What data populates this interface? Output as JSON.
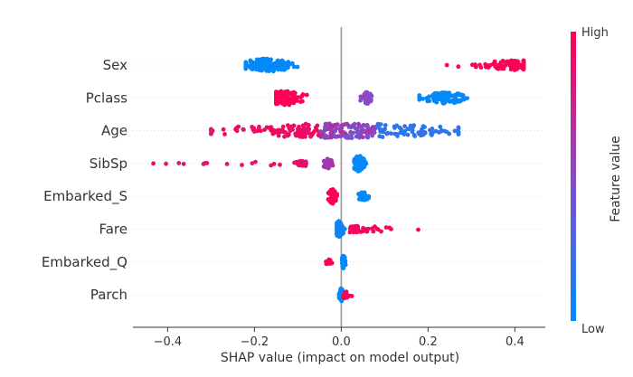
{
  "chart_data": {
    "type": "scatter",
    "subtype": "beeswarm",
    "xlabel": "SHAP value (impact on model output)",
    "ylabel": "",
    "xlim": [
      -0.48,
      0.47
    ],
    "xticks": [
      -0.4,
      -0.2,
      0.0,
      0.2,
      0.4
    ],
    "xtick_labels": [
      "−0.4",
      "−0.2",
      "0.0",
      "0.2",
      "0.4"
    ],
    "grid": false,
    "colorbar": {
      "label": "Feature value",
      "high_label": "High",
      "low_label": "Low",
      "high_color": "#ff0052",
      "low_color": "#008bfb"
    },
    "features": [
      {
        "name": "Sex",
        "clusters": [
          {
            "x_range": [
              -0.22,
              -0.09
            ],
            "center": -0.17,
            "value": 0.0,
            "count": 150,
            "spread": 0.8
          },
          {
            "x_range": [
              0.24,
              0.42
            ],
            "center": 0.4,
            "value": 1.0,
            "count": 110,
            "spread": 0.6
          }
        ]
      },
      {
        "name": "Pclass",
        "clusters": [
          {
            "x_range": [
              -0.15,
              -0.06
            ],
            "center": -0.13,
            "value": 1.0,
            "count": 90,
            "spread": 0.9
          },
          {
            "x_range": [
              0.04,
              0.07
            ],
            "center": 0.06,
            "value": 0.5,
            "count": 40,
            "spread": 0.7
          },
          {
            "x_range": [
              0.18,
              0.29
            ],
            "center": 0.24,
            "value": 0.0,
            "count": 100,
            "spread": 0.7
          }
        ]
      },
      {
        "name": "Age",
        "clusters": [
          {
            "x_range": [
              -0.3,
              0.27
            ],
            "center": 0.0,
            "value": 0.5,
            "count": 280,
            "spread": 0.9,
            "mixed": true
          }
        ]
      },
      {
        "name": "SibSp",
        "clusters": [
          {
            "x_range": [
              -0.44,
              -0.05
            ],
            "center": -0.09,
            "value": 0.9,
            "count": 60,
            "spread": 0.3,
            "tail": true
          },
          {
            "x_range": [
              -0.04,
              -0.01
            ],
            "center": -0.03,
            "value": 0.6,
            "count": 25,
            "spread": 0.6
          },
          {
            "x_range": [
              0.03,
              0.06
            ],
            "center": 0.04,
            "value": 0.0,
            "count": 80,
            "spread": 1.0
          }
        ]
      },
      {
        "name": "Embarked_S",
        "clusters": [
          {
            "x_range": [
              -0.03,
              -0.01
            ],
            "center": -0.02,
            "value": 1.0,
            "count": 50,
            "spread": 0.9
          },
          {
            "x_range": [
              0.04,
              0.07
            ],
            "center": 0.05,
            "value": 0.0,
            "count": 30,
            "spread": 0.5
          }
        ]
      },
      {
        "name": "Fare",
        "clusters": [
          {
            "x_range": [
              -0.01,
              0.01
            ],
            "center": -0.005,
            "value": 0.05,
            "count": 120,
            "spread": 1.0
          },
          {
            "x_range": [
              0.01,
              0.25
            ],
            "center": 0.03,
            "value": 0.95,
            "count": 60,
            "spread": 0.4,
            "tail": true
          }
        ]
      },
      {
        "name": "Embarked_Q",
        "clusters": [
          {
            "x_range": [
              -0.04,
              -0.02
            ],
            "center": -0.03,
            "value": 1.0,
            "count": 10,
            "spread": 0.3
          },
          {
            "x_range": [
              0.0,
              0.01
            ],
            "center": 0.005,
            "value": 0.0,
            "count": 50,
            "spread": 0.8
          }
        ]
      },
      {
        "name": "Parch",
        "clusters": [
          {
            "x_range": [
              -0.005,
              0.005
            ],
            "center": 0.0,
            "value": 0.0,
            "count": 60,
            "spread": 0.8
          },
          {
            "x_range": [
              0.005,
              0.03
            ],
            "center": 0.01,
            "value": 1.0,
            "count": 20,
            "spread": 0.4
          }
        ]
      }
    ]
  }
}
